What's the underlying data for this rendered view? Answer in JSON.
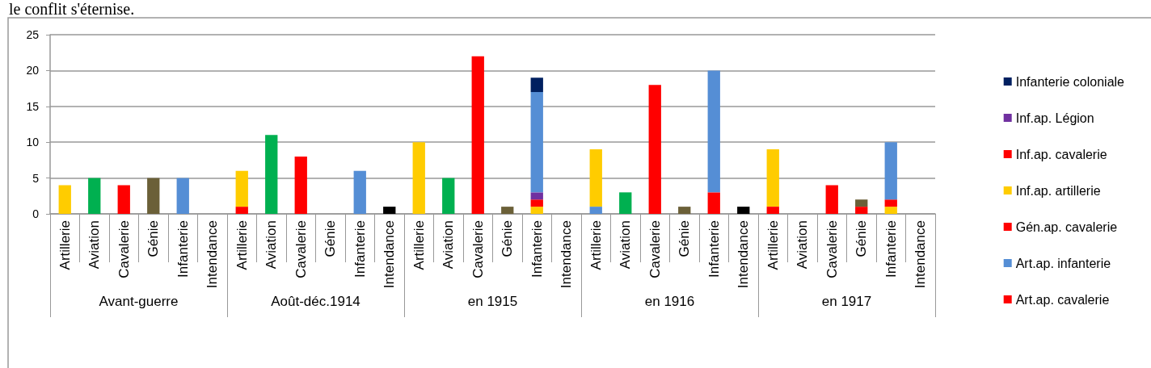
{
  "chart_data": {
    "type": "bar",
    "title": "le conflit s'éternise.",
    "categories": [
      "Artillerie",
      "Aviation",
      "Cavalerie",
      "Génie",
      "Infanterie",
      "Intendance",
      "Artillerie",
      "Aviation",
      "Cavalerie",
      "Génie",
      "Infanterie",
      "Intendance",
      "Artillerie",
      "Aviation",
      "Cavalerie",
      "Génie",
      "Infanterie",
      "Intendance",
      "Artillerie",
      "Aviation",
      "Cavalerie",
      "Génie",
      "Infanterie",
      "Intendance",
      "Artillerie",
      "Aviation",
      "Cavalerie",
      "Génie",
      "Infanterie",
      "Intendance"
    ],
    "annotations": [
      "Avant-guerre",
      "Août-déc.1914",
      "en 1915",
      "en 1916",
      "en 1917"
    ],
    "stacked": true,
    "series": [
      {
        "name": "Art.ap. cavalerie",
        "color": "#ff0000",
        "values": [
          null,
          null,
          null,
          null,
          null,
          null,
          1,
          null,
          null,
          null,
          null,
          null,
          null,
          null,
          null,
          null,
          null,
          null,
          null,
          null,
          null,
          null,
          null,
          null,
          1,
          null,
          null,
          null,
          null,
          null
        ]
      },
      {
        "name": "Art.ap. infanterie",
        "color": "#558ed5",
        "values": [
          null,
          null,
          null,
          null,
          null,
          null,
          null,
          null,
          null,
          null,
          null,
          null,
          null,
          null,
          null,
          null,
          null,
          null,
          1,
          null,
          null,
          null,
          null,
          null,
          null,
          null,
          null,
          null,
          null,
          null
        ]
      },
      {
        "name": "Gén.ap. cavalerie",
        "color": "#ff0000",
        "values": [
          null,
          null,
          null,
          null,
          null,
          null,
          null,
          null,
          null,
          null,
          null,
          null,
          null,
          null,
          null,
          null,
          null,
          null,
          null,
          null,
          null,
          null,
          null,
          null,
          null,
          null,
          null,
          1,
          null,
          null
        ]
      },
      {
        "name": "Inf.ap. artillerie",
        "color": "#ffcc00",
        "values": [
          null,
          null,
          null,
          null,
          null,
          null,
          null,
          null,
          null,
          null,
          null,
          null,
          null,
          null,
          null,
          null,
          1,
          null,
          null,
          null,
          null,
          null,
          null,
          null,
          null,
          null,
          null,
          null,
          1,
          null
        ]
      },
      {
        "name": "Inf.ap. cavalerie",
        "color": "#ff0000",
        "values": [
          null,
          null,
          null,
          null,
          null,
          null,
          null,
          null,
          null,
          null,
          null,
          null,
          null,
          null,
          null,
          null,
          1,
          null,
          null,
          null,
          null,
          null,
          3,
          null,
          null,
          null,
          null,
          null,
          1,
          null
        ]
      },
      {
        "name": "Inf.ap. Légion",
        "color": "#7030a0",
        "values": [
          null,
          null,
          null,
          null,
          null,
          null,
          null,
          null,
          null,
          null,
          null,
          null,
          null,
          null,
          null,
          null,
          1,
          null,
          null,
          null,
          null,
          null,
          null,
          null,
          null,
          null,
          null,
          null,
          null,
          null
        ]
      },
      {
        "colors": [
          "#ffcc00",
          "#00b050",
          "#ff0000",
          "#6b6038",
          "#558ed5",
          null,
          "#ffcc00",
          "#00b050",
          "#ff0000",
          null,
          "#558ed5",
          "#000000",
          "#ffcc00",
          "#00b050",
          "#ff0000",
          "#6b6038",
          "#558ed5",
          null,
          "#ffcc00",
          "#00b050",
          "#ff0000",
          "#6b6038",
          "#558ed5",
          "#000000",
          "#ffcc00",
          null,
          "#ff0000",
          "#6b6038",
          "#558ed5",
          null
        ],
        "values": [
          4,
          5,
          4,
          5,
          5,
          null,
          5,
          11,
          8,
          null,
          6,
          1,
          10,
          5,
          22,
          1,
          14,
          null,
          8,
          3,
          18,
          1,
          17,
          1,
          8,
          null,
          4,
          1,
          8,
          null
        ]
      },
      {
        "name": "Infanterie coloniale",
        "color": "#002060",
        "values": [
          null,
          null,
          null,
          null,
          null,
          null,
          null,
          null,
          null,
          null,
          null,
          null,
          null,
          null,
          null,
          null,
          2,
          null,
          null,
          null,
          null,
          null,
          null,
          null,
          null,
          null,
          null,
          null,
          null,
          null
        ]
      }
    ],
    "ylim": [
      0,
      25
    ],
    "yticks": [
      0,
      5,
      10,
      15,
      20,
      25
    ],
    "grid": "y",
    "legend": "right"
  }
}
